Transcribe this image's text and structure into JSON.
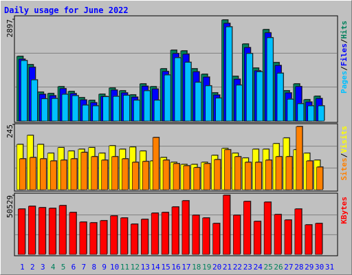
{
  "chart_data": {
    "type": "bar",
    "title": "Daily usage for June 2022",
    "categories": [
      "1",
      "2",
      "3",
      "4",
      "5",
      "6",
      "7",
      "8",
      "9",
      "10",
      "11",
      "12",
      "13",
      "14",
      "15",
      "16",
      "17",
      "18",
      "19",
      "20",
      "21",
      "22",
      "23",
      "24",
      "25",
      "26",
      "27",
      "28",
      "29",
      "30",
      "31"
    ],
    "category_colors": [
      "#0000ff",
      "#0000ff",
      "#0000ff",
      "#00805c",
      "#00805c",
      "#0000ff",
      "#0000ff",
      "#0000ff",
      "#0000ff",
      "#0000ff",
      "#00805c",
      "#00805c",
      "#0000ff",
      "#0000ff",
      "#0000ff",
      "#0000ff",
      "#0000ff",
      "#00805c",
      "#00805c",
      "#0000ff",
      "#0000ff",
      "#0000ff",
      "#0000ff",
      "#0000ff",
      "#00805c",
      "#00805c",
      "#0000ff",
      "#0000ff",
      "#0000ff",
      "#0000ff",
      "#0000ff"
    ],
    "legend_separator": "/",
    "panels": [
      {
        "ylim": [
          0,
          2897
        ],
        "yticks": [
          2897
        ],
        "series": [
          {
            "name": "Hits",
            "color": "#00805c",
            "values": [
              1840,
              1605,
              822,
              783,
              978,
              841,
              665,
              587,
              763,
              939,
              861,
              744,
              1057,
              978,
              1487,
              2016,
              1996,
              1487,
              1331,
              802,
              2877,
              1272,
              2192,
              1507,
              2603,
              1663,
              861,
              1057,
              607,
              705,
              0
            ]
          },
          {
            "name": "Files",
            "color": "#0000ff",
            "values": [
              1760,
              1530,
              760,
              720,
              920,
              780,
              600,
              520,
              700,
              880,
              800,
              680,
              990,
              910,
              1410,
              1920,
              1900,
              1400,
              1250,
              740,
              2780,
              1190,
              2090,
              1430,
              2510,
              1580,
              800,
              980,
              540,
              640,
              0
            ]
          },
          {
            "name": "Pages",
            "color": "#00c0ff",
            "values": [
              1720,
              1170,
              630,
              640,
              760,
              720,
              450,
              430,
              690,
              700,
              730,
              590,
              860,
              590,
              1310,
              1800,
              1670,
              1100,
              1000,
              650,
              2680,
              1020,
              1920,
              1400,
              2370,
              1360,
              620,
              490,
              430,
              430,
              0
            ]
          }
        ]
      },
      {
        "ylim": [
          0,
          245
        ],
        "yticks": [
          245
        ],
        "series": [
          {
            "name": "Visits",
            "color": "#ffff00",
            "values": [
              170,
              204,
              170,
              137,
              158,
              145,
              152,
              158,
              137,
              165,
              152,
              160,
              145,
              108,
              121,
              103,
              95,
              95,
              103,
              129,
              155,
              137,
              119,
              152,
              152,
              173,
              194,
              150,
              137,
              111,
              0
            ]
          },
          {
            "name": "Sites",
            "color": "#ff8000",
            "values": [
              116,
              121,
              116,
              108,
              111,
              116,
              140,
              124,
              111,
              124,
              116,
              103,
              106,
              196,
              111,
              98,
              90,
              83,
              98,
              113,
              150,
              124,
              103,
              103,
              111,
              124,
              124,
              237,
              108,
              85,
              0
            ]
          }
        ]
      },
      {
        "ylim": [
          0,
          50529
        ],
        "yticks": [
          50529
        ],
        "series": [
          {
            "name": "KBytes",
            "color": "#ff0000",
            "values": [
              38780,
              41130,
              39950,
              39360,
              41720,
              35840,
              27610,
              27020,
              28790,
              32900,
              31140,
              25850,
              29960,
              35250,
              35840,
              40540,
              45820,
              33490,
              31140,
              26440,
              50529,
              33490,
              45240,
              28200,
              44650,
              34080,
              29380,
              38780,
              25260,
              26440,
              0
            ]
          }
        ]
      }
    ]
  }
}
